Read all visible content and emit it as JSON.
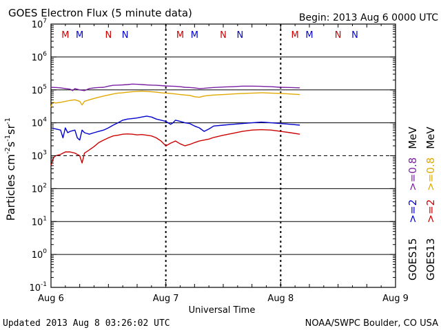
{
  "chart_data": {
    "type": "line",
    "title": "GOES Electron Flux (5 minute data)",
    "begin_text": "Begin: 2013 Aug 6 0000 UTC",
    "updated_text": "Updated 2013 Aug  8 03:26:02 UTC",
    "credit_text": "NOAA/SWPC Boulder, CO USA",
    "xlabel": "Universal Time",
    "ylabel": {
      "base": "Particles cm",
      "exp1": "-2",
      "mid1": "s",
      "exp2": "-1",
      "mid2": "sr",
      "exp3": "-1"
    },
    "x_unit": "hours since 2013 Aug 6 0000 UTC",
    "xlim": [
      0,
      72
    ],
    "x_ticks": [
      {
        "hour": 0,
        "label": "Aug 6"
      },
      {
        "hour": 24,
        "label": "Aug 7"
      },
      {
        "hour": 48,
        "label": "Aug 8"
      },
      {
        "hour": 72,
        "label": "Aug 9"
      }
    ],
    "y_scale": "log",
    "ylim": [
      0.1,
      10000000
    ],
    "y_ticks": [
      {
        "value": 10000000,
        "base": "10",
        "exp": "7"
      },
      {
        "value": 1000000,
        "base": "10",
        "exp": "6"
      },
      {
        "value": 100000,
        "base": "10",
        "exp": "5"
      },
      {
        "value": 10000,
        "base": "10",
        "exp": "4"
      },
      {
        "value": 1000,
        "base": "10",
        "exp": "3"
      },
      {
        "value": 100,
        "base": "10",
        "exp": "2"
      },
      {
        "value": 10,
        "base": "10",
        "exp": "1"
      },
      {
        "value": 1,
        "base": "10",
        "exp": "0"
      },
      {
        "value": 0.1,
        "base": "10",
        "exp": "-1"
      }
    ],
    "alert_threshold": 1000,
    "grid": "horizontal-decades",
    "day_markers": [
      24,
      48
    ],
    "markers": [
      {
        "hour": 3,
        "label": "M",
        "color": "#cc0000"
      },
      {
        "hour": 6,
        "label": "M",
        "color": "#0000cc"
      },
      {
        "hour": 12,
        "label": "N",
        "color": "#cc0000"
      },
      {
        "hour": 15.5,
        "label": "N",
        "color": "#0000cc"
      },
      {
        "hour": 27,
        "label": "M",
        "color": "#cc0000"
      },
      {
        "hour": 30,
        "label": "M",
        "color": "#0000cc"
      },
      {
        "hour": 36,
        "label": "N",
        "color": "#cc0000"
      },
      {
        "hour": 39.5,
        "label": "N",
        "color": "#0000cc"
      },
      {
        "hour": 51,
        "label": "M",
        "color": "#cc0000"
      },
      {
        "hour": 54,
        "label": "M",
        "color": "#0000cc"
      },
      {
        "hour": 60,
        "label": "N",
        "color": "#cc0000"
      },
      {
        "hour": 63.5,
        "label": "N",
        "color": "#0000cc"
      }
    ],
    "legend": {
      "placement": "right",
      "columns": [
        {
          "satellite": "GOES15",
          "energies": [
            {
              "text": ">=2",
              "color": "#0000cc"
            },
            {
              "text": ">=0.8",
              "color": "#7a1fa2"
            },
            {
              "text": "MeV",
              "color": "#000000"
            }
          ]
        },
        {
          "satellite": "GOES13",
          "energies": [
            {
              "text": ">=2",
              "color": "#cc0000"
            },
            {
              "text": ">=0.8",
              "color": "#e0a800"
            },
            {
              "text": "MeV",
              "color": "#000000"
            }
          ]
        }
      ]
    },
    "series": [
      {
        "key": "g15_08",
        "color": "#7a1fa2",
        "x": [
          0,
          1,
          2,
          3,
          4,
          4.5,
          5,
          6,
          7,
          8,
          9,
          10,
          11,
          12,
          13,
          14,
          15,
          16,
          17,
          18,
          19,
          20,
          21,
          22,
          23,
          24,
          25,
          26,
          27,
          28,
          29,
          30,
          31,
          32,
          33,
          34,
          36,
          38,
          40,
          42,
          44,
          46,
          48,
          50,
          52
        ],
        "y": [
          120000,
          118000,
          115000,
          110000,
          105000,
          95000,
          110000,
          100000,
          95000,
          110000,
          115000,
          118000,
          120000,
          130000,
          138000,
          140000,
          142000,
          145000,
          150000,
          148000,
          145000,
          142000,
          140000,
          138000,
          135000,
          132000,
          130000,
          128000,
          125000,
          120000,
          118000,
          115000,
          110000,
          112000,
          115000,
          118000,
          122000,
          125000,
          130000,
          130000,
          128000,
          125000,
          120000,
          118000,
          115000
        ]
      },
      {
        "key": "g13_08",
        "color": "#e0a800",
        "x": [
          0,
          0.3,
          1,
          2,
          3,
          4,
          5,
          6,
          6.5,
          7,
          8,
          9,
          10,
          11,
          12,
          13,
          14,
          15,
          16,
          17,
          18,
          19,
          20,
          21,
          22,
          23,
          24,
          25,
          26,
          27,
          28,
          29,
          30,
          31,
          32,
          33,
          34,
          36,
          38,
          40,
          42,
          44,
          46,
          48,
          50,
          52
        ],
        "y": [
          30000,
          42000,
          40000,
          42000,
          45000,
          48000,
          50000,
          45000,
          35000,
          45000,
          50000,
          55000,
          60000,
          65000,
          70000,
          75000,
          80000,
          82000,
          85000,
          88000,
          90000,
          92000,
          90000,
          88000,
          85000,
          82000,
          80000,
          78000,
          75000,
          72000,
          70000,
          68000,
          62000,
          60000,
          65000,
          68000,
          70000,
          72000,
          75000,
          78000,
          80000,
          82000,
          80000,
          78000,
          75000,
          72000
        ]
      },
      {
        "key": "g15_2",
        "color": "#0000cc",
        "x": [
          0,
          1,
          2,
          2.5,
          3,
          3.5,
          4,
          5,
          5.5,
          6,
          6.5,
          7,
          8,
          9,
          10,
          11,
          12,
          13,
          14,
          15,
          16,
          17,
          18,
          19,
          20,
          21,
          22,
          23,
          24,
          25,
          25.5,
          26,
          27,
          28,
          29,
          30,
          31,
          32,
          33,
          34,
          36,
          38,
          40,
          42,
          44,
          46,
          48,
          50,
          52
        ],
        "y": [
          7000,
          6500,
          6000,
          3500,
          7000,
          5000,
          5500,
          6000,
          3500,
          3000,
          6000,
          5000,
          4500,
          5000,
          5500,
          6000,
          7000,
          8500,
          10000,
          12000,
          13000,
          13500,
          14000,
          15000,
          16000,
          15000,
          13000,
          12000,
          11000,
          9000,
          10000,
          12000,
          11000,
          10000,
          9500,
          8000,
          7000,
          5500,
          6500,
          8000,
          8500,
          9000,
          9500,
          10000,
          10500,
          10000,
          9500,
          9000,
          8500
        ]
      },
      {
        "key": "g13_2",
        "color": "#cc0000",
        "x": [
          0,
          0.3,
          0.6,
          1,
          2,
          3,
          4,
          5,
          6,
          6.5,
          7,
          8,
          9,
          10,
          11,
          12,
          13,
          14,
          15,
          16,
          17,
          18,
          19,
          20,
          21,
          22,
          23,
          24,
          25,
          26,
          27,
          28,
          29,
          30,
          31,
          32,
          33,
          34,
          36,
          38,
          40,
          42,
          44,
          46,
          48,
          50,
          52
        ],
        "y": [
          500,
          700,
          900,
          1000,
          1100,
          1300,
          1300,
          1200,
          1000,
          600,
          1200,
          1500,
          1900,
          2500,
          3000,
          3500,
          4000,
          4200,
          4500,
          4600,
          4500,
          4300,
          4400,
          4200,
          4000,
          3500,
          2800,
          2000,
          2400,
          2800,
          2300,
          2000,
          2200,
          2500,
          2800,
          3000,
          3200,
          3600,
          4200,
          4800,
          5500,
          6000,
          6200,
          6000,
          5500,
          5000,
          4500
        ]
      }
    ]
  }
}
